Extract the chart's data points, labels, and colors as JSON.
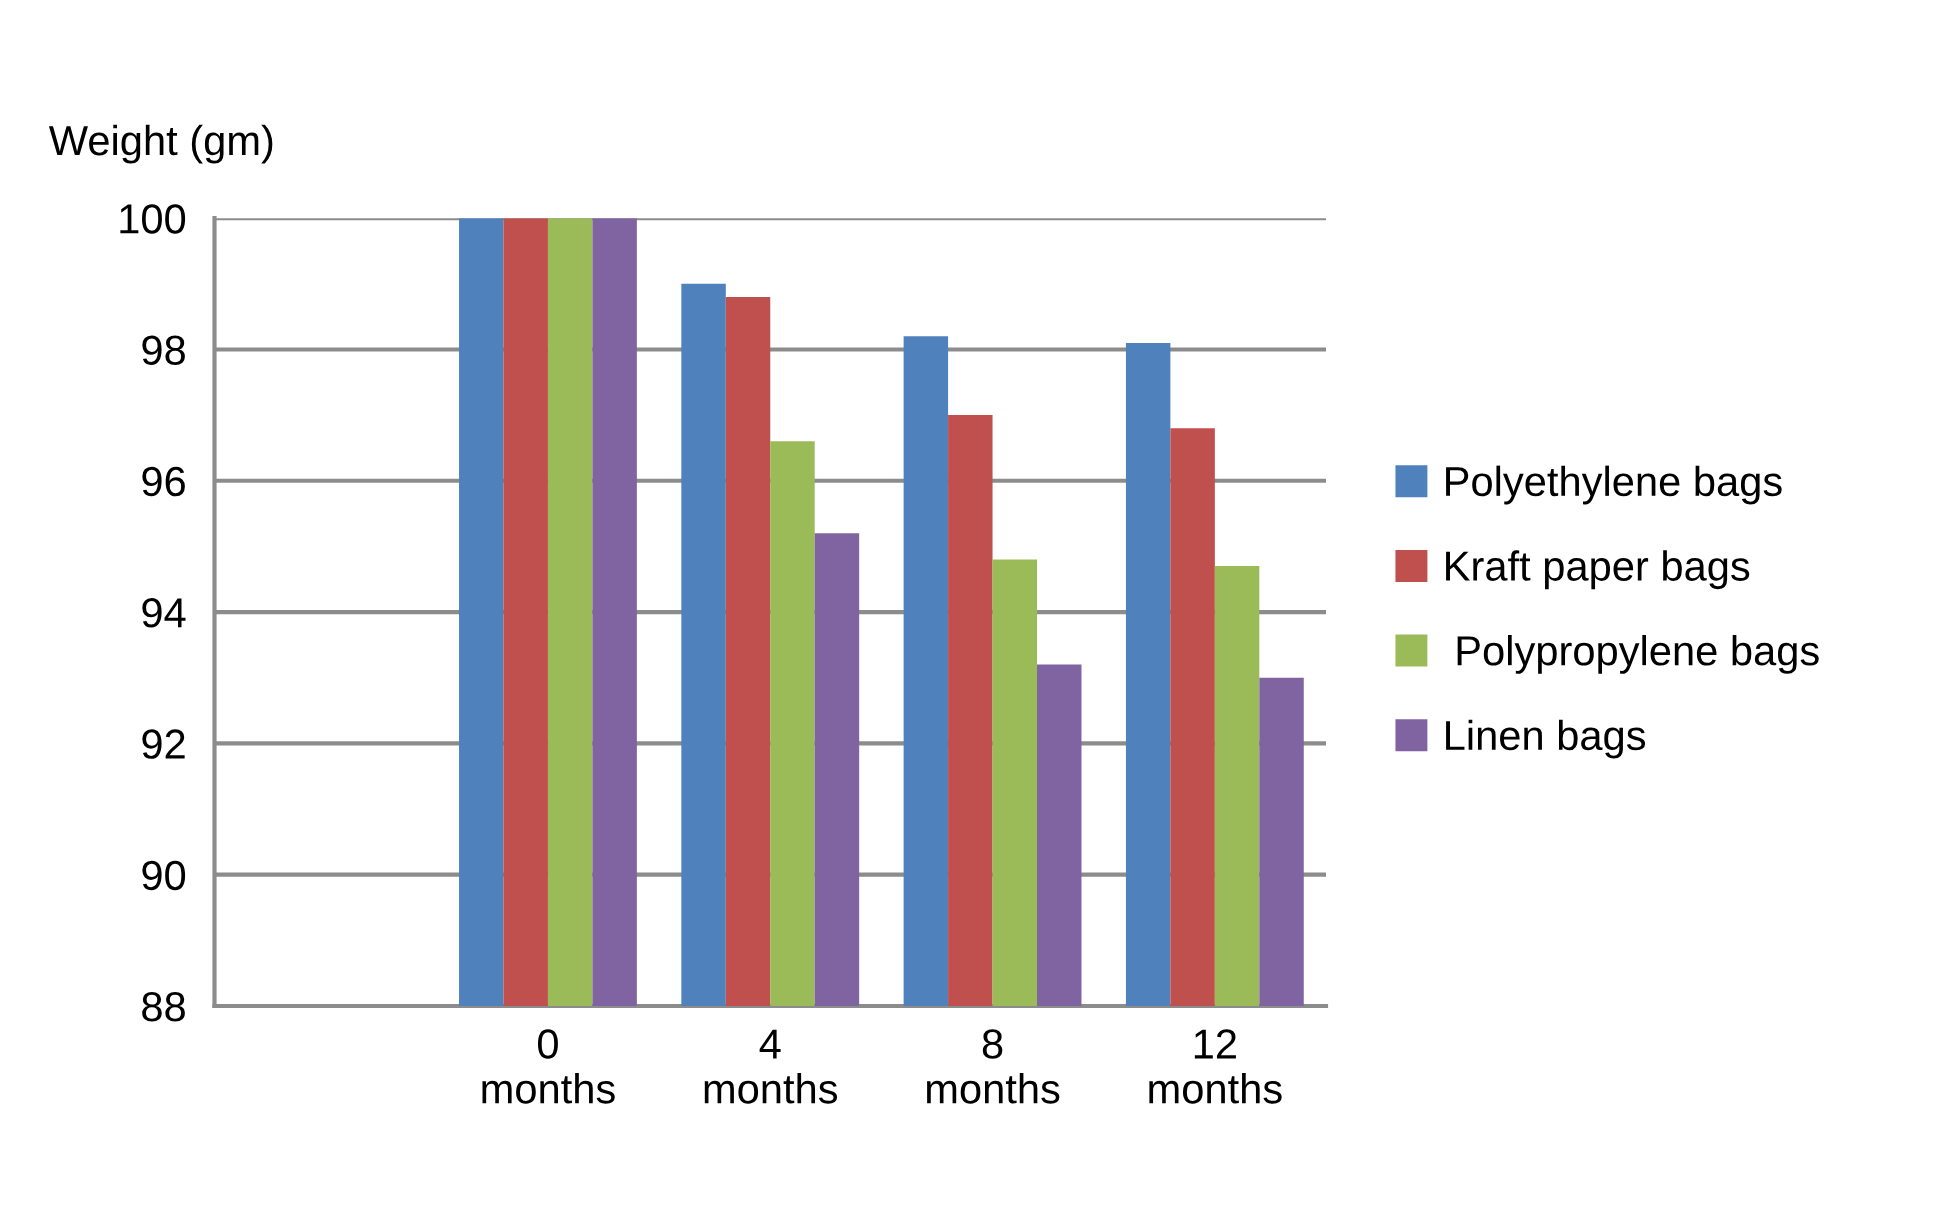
{
  "chart_data": {
    "type": "bar",
    "ylabel": "Weight (gm)",
    "categories": [
      null,
      "0\nmonths",
      "4\nmonths",
      "8\nmonths",
      "12\nmonths"
    ],
    "series": [
      {
        "name": "Polyethylene bags",
        "color": "#4f81bd",
        "values": [
          null,
          100,
          99.0,
          98.2,
          98.1
        ]
      },
      {
        "name": "Kraft paper bags",
        "color": "#c0504d",
        "values": [
          null,
          100,
          98.8,
          97.0,
          96.8
        ]
      },
      {
        "name": " Polypropylene bags",
        "color": "#9bbb59",
        "values": [
          null,
          100,
          96.6,
          94.8,
          94.7
        ]
      },
      {
        "name": "Linen bags",
        "color": "#8064a2",
        "values": [
          null,
          100,
          95.2,
          93.2,
          93.0
        ]
      }
    ],
    "ylim": [
      88,
      100
    ],
    "yticks": [
      88,
      90,
      92,
      94,
      96,
      98,
      100
    ],
    "grid": "y",
    "legend": "right"
  }
}
